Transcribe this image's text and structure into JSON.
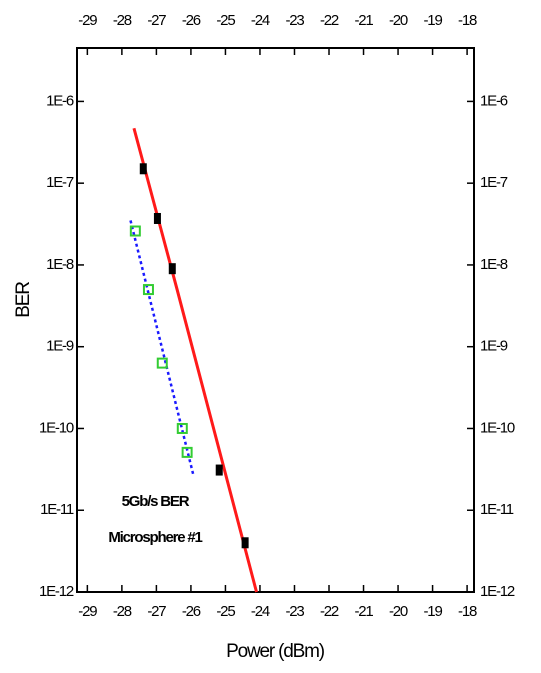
{
  "chart_data": {
    "type": "scatter",
    "xlabel": "Power (dBm)",
    "ylabel": "BER",
    "annotations": [
      "5Gb/s BER",
      "Microsphere #1"
    ],
    "xlim": [
      -29.3,
      -17.8
    ],
    "ylim": [
      1e-12,
      4.5e-06
    ],
    "ylog": true,
    "xticks": [
      -29,
      -28,
      -27,
      -26,
      -25,
      -24,
      -23,
      -22,
      -21,
      -20,
      -19,
      -18
    ],
    "yticks": [
      {
        "value": 1e-12,
        "label": "1E-12"
      },
      {
        "value": 1e-11,
        "label": "1E-11"
      },
      {
        "value": 1e-10,
        "label": "1E-10"
      },
      {
        "value": 1e-09,
        "label": "1E-9"
      },
      {
        "value": 1e-08,
        "label": "1E-8"
      },
      {
        "value": 1e-07,
        "label": "1E-7"
      },
      {
        "value": 1e-06,
        "label": "1E-6"
      }
    ],
    "series": [
      {
        "style": "line",
        "color": "#ff1a1a",
        "x": [
          -27.65,
          -26.4,
          -24.1
        ],
        "values": [
          4.7e-07,
          5e-09,
          1e-12
        ]
      },
      {
        "style": "dotted",
        "color": "#1a1aff",
        "x": [
          -27.75,
          -25.93
        ],
        "values": [
          3.5e-08,
          2.7e-11
        ]
      },
      {
        "style": "filled-marker",
        "color": "#000000",
        "x": [
          -27.38,
          -26.97,
          -26.54,
          -25.18,
          -24.43
        ],
        "values": [
          1.5e-07,
          3.7e-08,
          9e-09,
          3.1e-11,
          4e-12
        ]
      },
      {
        "style": "hollow-marker",
        "color": "#33cc33",
        "x": [
          -27.61,
          -27.23,
          -26.83,
          -26.25,
          -26.11
        ],
        "values": [
          2.6e-08,
          5e-09,
          6.3e-10,
          1e-10,
          5.1e-11
        ]
      }
    ]
  }
}
